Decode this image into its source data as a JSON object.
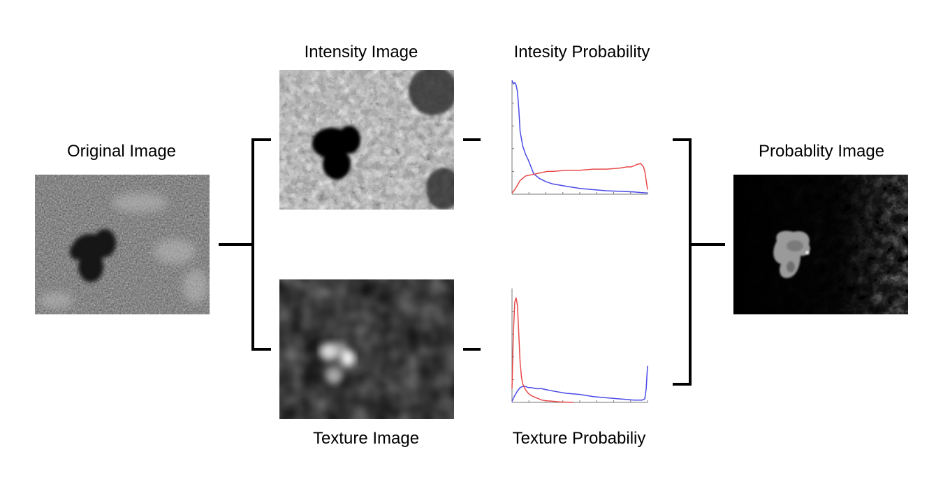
{
  "titles": {
    "original": "Original Image",
    "intensity_image": "Intensity Image",
    "intensity_probability": "Intesity Probability",
    "probability_image": "Probablity Image",
    "texture_image": "Texture Image",
    "texture_probability": "Texture Probabiliy"
  },
  "colors": {
    "series_blue": "#4a4ae8",
    "series_red": "#e84a4a",
    "connector": "#000000"
  },
  "chart_data": [
    {
      "type": "line",
      "title": "Intesity Probability",
      "xlim": [
        0,
        100
      ],
      "ylim": [
        0,
        100
      ],
      "series": [
        {
          "name": "blue",
          "x": [
            0,
            1,
            2,
            3,
            4,
            5,
            6,
            8,
            10,
            12,
            14,
            16,
            20,
            25,
            30,
            40,
            50,
            60,
            70,
            80,
            90,
            95,
            98,
            100
          ],
          "y": [
            100,
            97,
            98,
            96,
            90,
            75,
            55,
            42,
            35,
            30,
            24,
            18,
            14,
            11,
            9,
            7,
            5,
            4,
            3,
            2.5,
            2,
            1.5,
            1.2,
            1
          ]
        },
        {
          "name": "red",
          "x": [
            0,
            2,
            4,
            6,
            8,
            10,
            14,
            18,
            22,
            26,
            30,
            40,
            50,
            60,
            70,
            80,
            85,
            88,
            92,
            95,
            97,
            98,
            99,
            100
          ],
          "y": [
            1,
            4,
            8,
            12,
            14,
            16,
            17,
            18,
            19,
            20,
            20,
            21,
            21,
            22,
            22,
            23,
            24,
            24,
            26,
            27,
            24,
            20,
            12,
            4
          ]
        }
      ]
    },
    {
      "type": "line",
      "title": "Texture Probabiliy",
      "xlim": [
        0,
        100
      ],
      "ylim": [
        0,
        100
      ],
      "series": [
        {
          "name": "blue",
          "x": [
            0,
            2,
            4,
            6,
            8,
            10,
            12,
            14,
            18,
            22,
            26,
            30,
            40,
            50,
            60,
            70,
            80,
            90,
            96,
            98,
            99,
            100
          ],
          "y": [
            1,
            6,
            10,
            13,
            14,
            14,
            13,
            13,
            12,
            12,
            11,
            10,
            8,
            7,
            5,
            4,
            3,
            2,
            2,
            3,
            12,
            32
          ]
        },
        {
          "name": "red",
          "x": [
            0,
            1,
            2,
            3,
            4,
            5,
            6,
            7,
            8,
            10,
            12,
            14,
            16,
            18,
            20,
            22,
            25,
            30,
            35,
            40,
            45
          ],
          "y": [
            12,
            60,
            88,
            92,
            85,
            60,
            35,
            22,
            16,
            11,
            8,
            6,
            5,
            4,
            3,
            2,
            1.5,
            1,
            0.5,
            0.2,
            0
          ]
        }
      ]
    }
  ]
}
